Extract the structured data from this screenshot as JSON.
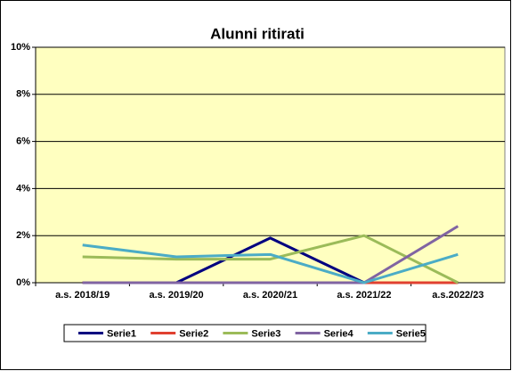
{
  "chart_data": {
    "type": "line",
    "title": "Alunni ritirati",
    "categories": [
      "a.s. 2018/19",
      "a.s. 2019/20",
      "a.s. 2020/21",
      "a.s. 2021/22",
      "a.s.2022/23"
    ],
    "series": [
      {
        "name": "Serie1",
        "color": "#000080",
        "values": [
          0,
          0,
          1.9,
          0,
          0
        ]
      },
      {
        "name": "Serie2",
        "color": "#e04030",
        "values": [
          0,
          0,
          0,
          0,
          0
        ]
      },
      {
        "name": "Serie3",
        "color": "#9bbb59",
        "values": [
          1.1,
          1.0,
          1.0,
          2.0,
          0
        ]
      },
      {
        "name": "Serie4",
        "color": "#8064a2",
        "values": [
          0,
          0,
          0,
          0,
          2.4
        ]
      },
      {
        "name": "Serie5",
        "color": "#4bacc6",
        "values": [
          1.6,
          1.1,
          1.2,
          0,
          1.2
        ]
      }
    ],
    "ylim": [
      0,
      10
    ],
    "yticks": [
      {
        "value": 0,
        "label": "0%"
      },
      {
        "value": 2,
        "label": "2%"
      },
      {
        "value": 4,
        "label": "4%"
      },
      {
        "value": 6,
        "label": "6%"
      },
      {
        "value": 8,
        "label": "8%"
      },
      {
        "value": 10,
        "label": "10%"
      }
    ],
    "grid": true,
    "plot_background": "#ffffc0",
    "legend": "bottom"
  }
}
